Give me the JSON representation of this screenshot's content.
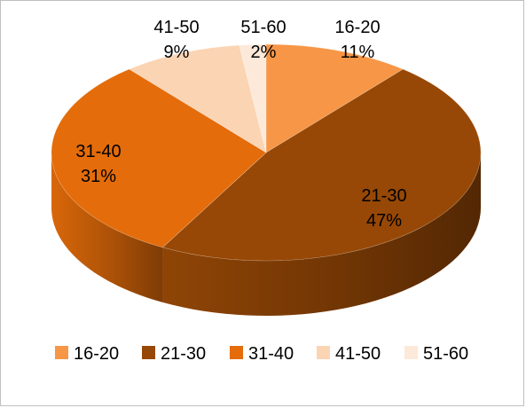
{
  "chart_data": {
    "type": "pie",
    "style": "3d",
    "title": "",
    "categories": [
      "16-20",
      "21-30",
      "31-40",
      "41-50",
      "51-60"
    ],
    "values": [
      11,
      47,
      31,
      9,
      2
    ],
    "value_labels": [
      "11%",
      "47%",
      "31%",
      "9%",
      "2%"
    ],
    "colors": [
      "#f79646",
      "#974806",
      "#e46c0a",
      "#fbd4b4",
      "#fde9d9"
    ],
    "legend": {
      "position": "bottom",
      "entries": [
        "16-20",
        "21-30",
        "31-40",
        "41-50",
        "51-60"
      ]
    },
    "data_labels": "category and percentage"
  }
}
